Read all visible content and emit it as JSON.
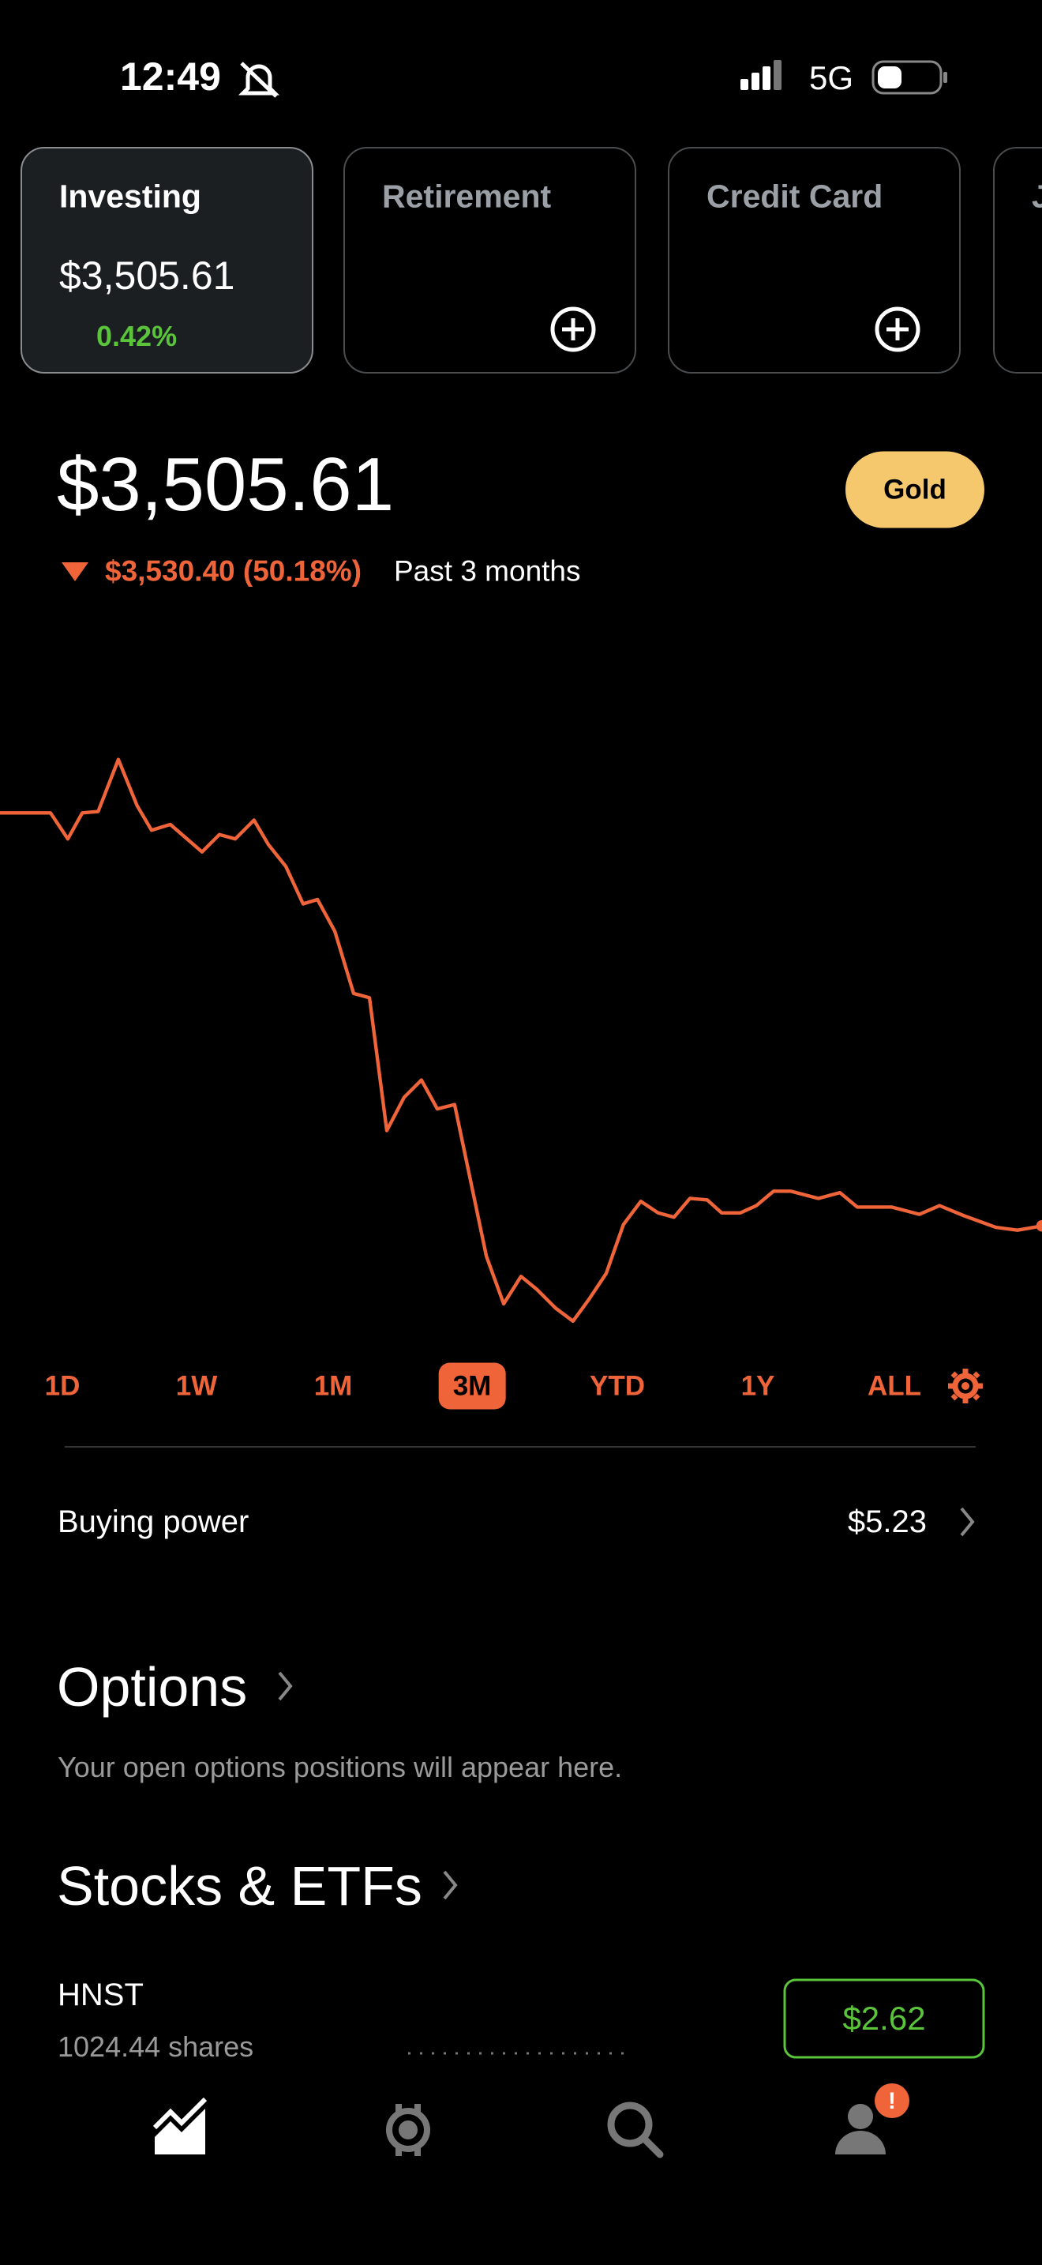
{
  "status_bar": {
    "time": "12:49",
    "network": "5G"
  },
  "accounts": [
    {
      "name": "Investing",
      "value": "$3,505.61",
      "change": "0.42%"
    },
    {
      "name": "Retirement"
    },
    {
      "name": "Credit Card"
    },
    {
      "name": "J"
    }
  ],
  "portfolio": {
    "value": "$3,505.61",
    "badge": "Gold",
    "change": "$3,530.40 (50.18%)",
    "period": "Past 3 months"
  },
  "ranges": [
    "1D",
    "1W",
    "1M",
    "3M",
    "YTD",
    "1Y",
    "ALL"
  ],
  "selected_range": 3,
  "buying_power": {
    "label": "Buying power",
    "value": "$5.23"
  },
  "options": {
    "title": "Options",
    "empty_message": "Your open options positions will appear here."
  },
  "stocks": {
    "title": "Stocks & ETFs",
    "holdings": [
      {
        "symbol": "HNST",
        "shares": "1024.44 shares",
        "price": "$2.62"
      }
    ]
  },
  "notification_badge": "!"
}
